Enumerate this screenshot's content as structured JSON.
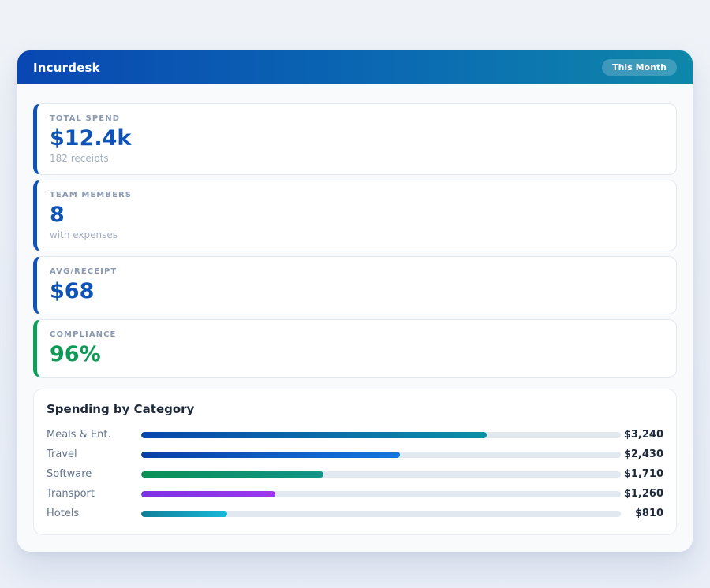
{
  "header": {
    "title": "Incurdesk",
    "badge": "This Month"
  },
  "stats": [
    {
      "label": "TOTAL SPEND",
      "value": "$12.4k",
      "sub": "182 receipts",
      "accent": "#1053b8",
      "value_color": "#1053b8"
    },
    {
      "label": "TEAM MEMBERS",
      "value": "8",
      "sub": "with expenses",
      "accent": "#1053b8",
      "value_color": "#1053b8"
    },
    {
      "label": "AVG/RECEIPT",
      "value": "$68",
      "sub": "",
      "accent": "#1053b8",
      "value_color": "#1053b8"
    },
    {
      "label": "COMPLIANCE",
      "value": "96%",
      "sub": "",
      "accent": "#0c9f57",
      "value_color": "#0c9a56"
    }
  ],
  "chart_data": {
    "type": "bar",
    "orientation": "horizontal",
    "title": "Spending by Category",
    "categories": [
      "Meals & Ent.",
      "Travel",
      "Software",
      "Transport",
      "Hotels"
    ],
    "values": [
      3240,
      2430,
      1710,
      1260,
      810
    ],
    "value_labels": [
      "$3,240",
      "$2,430",
      "$1,710",
      "$1,260",
      "$810"
    ],
    "xlim": [
      0,
      4500
    ],
    "grid": false,
    "legend": false,
    "track_color": "#e2e8f0",
    "bar_gradients": [
      [
        "#0a46ad",
        "#0a90a5"
      ],
      [
        "#0a3fa5",
        "#1277dd"
      ],
      [
        "#0a9155",
        "#129488"
      ],
      [
        "#7c33e4",
        "#9d36ec"
      ],
      [
        "#107f99",
        "#17b8d9"
      ]
    ]
  }
}
